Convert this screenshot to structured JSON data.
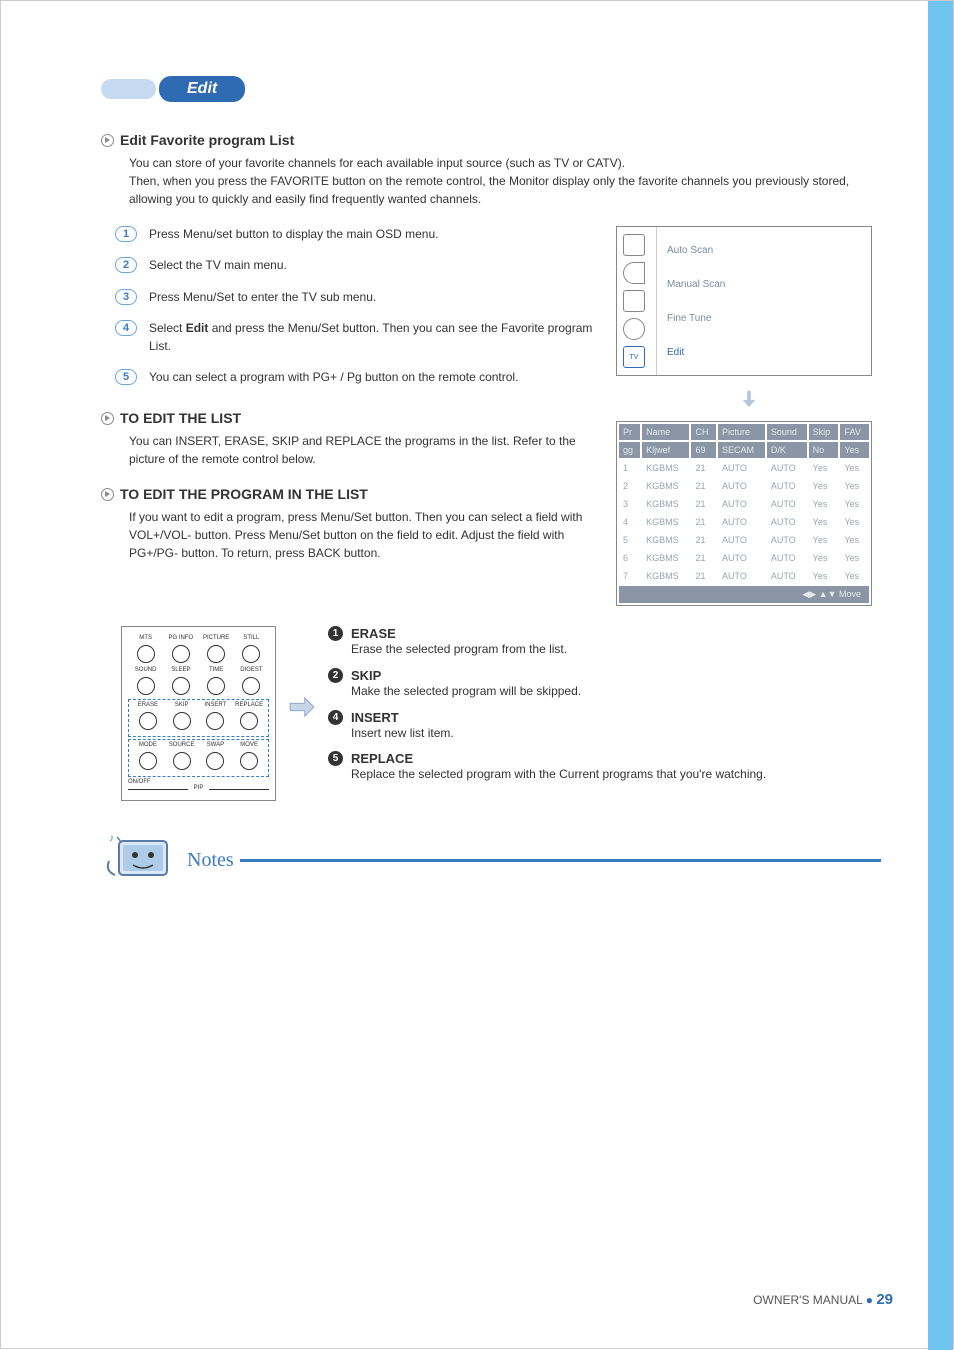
{
  "colors": {
    "accent_blue": "#2f6bb3",
    "light_blue_bar": "#c6daf1",
    "side_bar": "#6fc5f0",
    "grey_text": "#9aa5b5",
    "table_header_bg": "#8a95a5",
    "table_header_text": "#e5e9f0"
  },
  "pill": {
    "label": "Edit"
  },
  "section1": {
    "title": "Edit Favorite program List",
    "intro_line1": "You can store of your favorite channels for each available input source (such as TV or CATV).",
    "intro_line2": "Then, when you press the FAVORITE button on the remote control, the Monitor display only the favorite channels you previously stored, allowing you to quickly and easily find frequently wanted channels."
  },
  "steps": [
    {
      "n": "1",
      "text": "Press Menu/set button to display the main OSD menu."
    },
    {
      "n": "2",
      "text": "Select the TV main menu."
    },
    {
      "n": "3",
      "text": "Press Menu/Set to enter the TV sub menu."
    },
    {
      "n": "4",
      "text_html": "Select <b>Edit</b> and press the Menu/Set button. Then you can see the Favorite program List."
    },
    {
      "n": "5",
      "text": "You can select a program with PG+ / Pg button on the remote control."
    }
  ],
  "section2": {
    "title": "TO EDIT THE LIST",
    "body": "You can INSERT, ERASE, SKIP and REPLACE the programs in the list. Refer to the picture of the remote control below."
  },
  "section3": {
    "title": "TO EDIT THE PROGRAM IN THE LIST",
    "body": "If you want to edit a program, press Menu/Set button. Then you can select a field with VOL+/VOL- button. Press Menu/Set button on the field to edit. Adjust the field with PG+/PG- button. To return, press BACK button."
  },
  "osd_menu": {
    "icons": [
      "display-icon",
      "sound-icon",
      "channel-icon",
      "time-icon",
      "tv-icon"
    ],
    "items": [
      "Auto Scan",
      "Manual Scan",
      "Fine Tune",
      "Edit"
    ],
    "active_index": 3
  },
  "program_table": {
    "header_row1": [
      "Pr",
      "Name",
      "CH",
      "Picture",
      "Sound",
      "Skip",
      "FAV"
    ],
    "header_row2": [
      "gg",
      "Kljwef",
      "69",
      "SECAM",
      "D/K",
      "No",
      "Yes"
    ],
    "rows": [
      [
        "1",
        "KGBMS",
        "21",
        "AUTO",
        "AUTO",
        "Yes",
        "Yes"
      ],
      [
        "2",
        "KGBMS",
        "21",
        "AUTO",
        "AUTO",
        "Yes",
        "Yes"
      ],
      [
        "3",
        "KGBMS",
        "21",
        "AUTO",
        "AUTO",
        "Yes",
        "Yes"
      ],
      [
        "4",
        "KGBMS",
        "21",
        "AUTO",
        "AUTO",
        "Yes",
        "Yes"
      ],
      [
        "5",
        "KGBMS",
        "21",
        "AUTO",
        "AUTO",
        "Yes",
        "Yes"
      ],
      [
        "6",
        "KGBMS",
        "21",
        "AUTO",
        "AUTO",
        "Yes",
        "Yes"
      ],
      [
        "7",
        "KGBMS",
        "21",
        "AUTO",
        "AUTO",
        "Yes",
        "Yes"
      ]
    ],
    "footer": "◀▶ ▲▼ Move"
  },
  "remote": {
    "row1_labels": [
      "MTS",
      "PG INFO",
      "PICTURE",
      "STILL"
    ],
    "row2_labels": [
      "SOUND",
      "SLEEP",
      "TIME",
      "DIGEST"
    ],
    "row3_labels": [
      "ERASE",
      "SKIP",
      "INSERT",
      "REPLACE"
    ],
    "row4_labels": [
      "MODE",
      "SOURCE",
      "SWAP",
      "MOVE"
    ],
    "onoff": "ON/OFF",
    "pip": "PIP"
  },
  "ops": [
    {
      "n": "1",
      "title": "ERASE",
      "desc": "Erase the selected program from the list."
    },
    {
      "n": "2",
      "title": "SKIP",
      "desc": "Make the selected program will be skipped."
    },
    {
      "n": "4",
      "title": "INSERT",
      "desc": "Insert new list item."
    },
    {
      "n": "5",
      "title": "REPLACE",
      "desc": "Replace the selected program with the Current programs that you're watching."
    }
  ],
  "notes_label": "Notes",
  "footer": {
    "text": "OWNER'S MANUAL",
    "bullet": "●",
    "page": "29"
  }
}
